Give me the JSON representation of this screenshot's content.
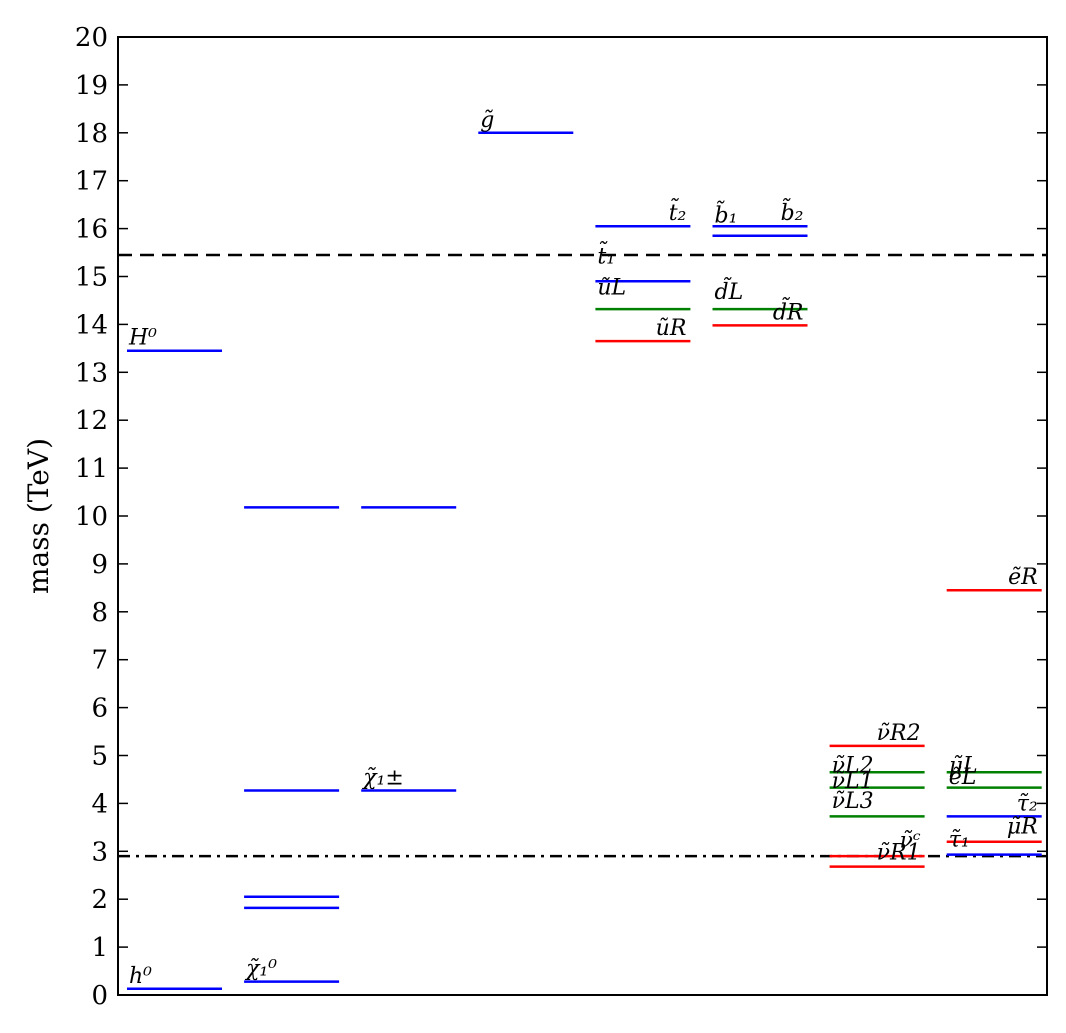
{
  "chart_data": {
    "type": "level-diagram",
    "ylabel": "mass (TeV)",
    "ylim": [
      0,
      20
    ],
    "yticks": [
      0,
      1,
      2,
      3,
      4,
      5,
      6,
      7,
      8,
      9,
      10,
      11,
      12,
      13,
      14,
      15,
      16,
      17,
      18,
      19,
      20
    ],
    "columns": 8,
    "colors": {
      "blue": "#0000ff",
      "green": "#008000",
      "red": "#ff0000",
      "black": "#000000"
    },
    "reference_lines": [
      {
        "value": 15.45,
        "style": "dashed"
      },
      {
        "value": 2.9,
        "style": "dashdot"
      }
    ],
    "levels": [
      {
        "col": 0,
        "value": 0.13,
        "color": "blue"
      },
      {
        "col": 0,
        "value": 13.45,
        "color": "blue"
      },
      {
        "col": 1,
        "value": 0.28,
        "color": "blue"
      },
      {
        "col": 1,
        "value": 1.82,
        "color": "blue"
      },
      {
        "col": 1,
        "value": 2.05,
        "color": "blue"
      },
      {
        "col": 1,
        "value": 4.27,
        "color": "blue"
      },
      {
        "col": 1,
        "value": 10.18,
        "color": "blue"
      },
      {
        "col": 2,
        "value": 4.27,
        "color": "blue"
      },
      {
        "col": 2,
        "value": 10.18,
        "color": "blue"
      },
      {
        "col": 3,
        "value": 18.0,
        "color": "blue"
      },
      {
        "col": 4,
        "value": 13.65,
        "color": "red"
      },
      {
        "col": 4,
        "value": 14.32,
        "color": "green"
      },
      {
        "col": 4,
        "value": 14.9,
        "color": "blue"
      },
      {
        "col": 4,
        "value": 16.05,
        "color": "blue"
      },
      {
        "col": 5,
        "value": 13.98,
        "color": "red"
      },
      {
        "col": 5,
        "value": 14.32,
        "color": "green"
      },
      {
        "col": 5,
        "value": 15.85,
        "color": "blue"
      },
      {
        "col": 5,
        "value": 16.05,
        "color": "blue"
      },
      {
        "col": 6,
        "value": 2.68,
        "color": "red"
      },
      {
        "col": 6,
        "value": 2.9,
        "color": "red"
      },
      {
        "col": 6,
        "value": 3.73,
        "color": "green"
      },
      {
        "col": 6,
        "value": 4.33,
        "color": "green"
      },
      {
        "col": 6,
        "value": 4.65,
        "color": "green"
      },
      {
        "col": 6,
        "value": 5.2,
        "color": "red"
      },
      {
        "col": 7,
        "value": 2.93,
        "color": "blue"
      },
      {
        "col": 7,
        "value": 3.2,
        "color": "red"
      },
      {
        "col": 7,
        "value": 3.73,
        "color": "blue"
      },
      {
        "col": 7,
        "value": 4.33,
        "color": "green"
      },
      {
        "col": 7,
        "value": 4.65,
        "color": "green"
      },
      {
        "col": 7,
        "value": 8.45,
        "color": "red"
      }
    ],
    "labels": [
      {
        "text": "h⁰",
        "col": 0,
        "value": 0.13,
        "align": "left"
      },
      {
        "text": "H⁰",
        "col": 0,
        "value": 13.45,
        "align": "left"
      },
      {
        "text": "χ̃₁⁰",
        "col": 1,
        "value": 0.28,
        "align": "left"
      },
      {
        "text": "χ̃₁±",
        "col": 2,
        "value": 4.27,
        "align": "left"
      },
      {
        "text": "g̃",
        "col": 3,
        "value": 18.0,
        "align": "left"
      },
      {
        "text": "t̃₂",
        "col": 4,
        "value": 16.05,
        "align": "right"
      },
      {
        "text": "t̃₁",
        "col": 4,
        "value": 15.15,
        "align": "left"
      },
      {
        "text": "ũL",
        "col": 4,
        "value": 14.5,
        "align": "left"
      },
      {
        "text": "ũR",
        "col": 4,
        "value": 13.65,
        "align": "right"
      },
      {
        "text": "b̃₁",
        "col": 5,
        "value": 16.0,
        "align": "left"
      },
      {
        "text": "b̃₂",
        "col": 5,
        "value": 16.05,
        "align": "right"
      },
      {
        "text": "d̃L",
        "col": 5,
        "value": 14.4,
        "align": "left"
      },
      {
        "text": "d̃R",
        "col": 5,
        "value": 13.98,
        "align": "right"
      },
      {
        "text": "ν̃R2",
        "col": 6,
        "value": 5.2,
        "align": "right"
      },
      {
        "text": "ν̃L2",
        "col": 6,
        "value": 4.52,
        "align": "left"
      },
      {
        "text": "ν̃L1",
        "col": 6,
        "value": 4.2,
        "align": "left"
      },
      {
        "text": "ν̃L3",
        "col": 6,
        "value": 3.78,
        "align": "left"
      },
      {
        "text": "ν̃ᶜ",
        "col": 6,
        "value": 2.95,
        "align": "right"
      },
      {
        "text": "ν̃R1",
        "col": 6,
        "value": 2.7,
        "align": "right"
      },
      {
        "text": "ẽR",
        "col": 7,
        "value": 8.45,
        "align": "right"
      },
      {
        "text": "μ̃L",
        "col": 7,
        "value": 4.52,
        "align": "left"
      },
      {
        "text": "ẽL",
        "col": 7,
        "value": 4.28,
        "align": "left"
      },
      {
        "text": "τ̃₂",
        "col": 7,
        "value": 3.73,
        "align": "right"
      },
      {
        "text": "μ̃R",
        "col": 7,
        "value": 3.25,
        "align": "right"
      },
      {
        "text": "τ̃₁",
        "col": 7,
        "value": 2.98,
        "align": "left"
      }
    ]
  }
}
